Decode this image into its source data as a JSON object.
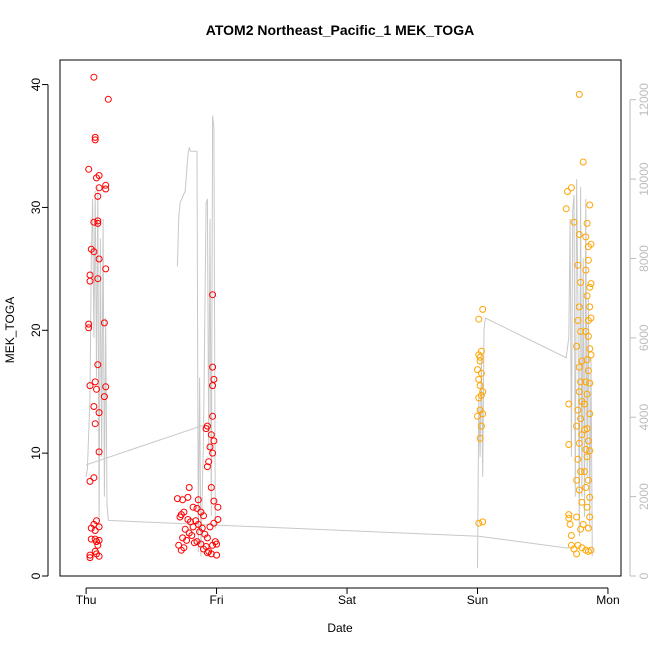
{
  "chart_data": {
    "type": "scatter",
    "title": "ATOM2 Northeast_Pacific_1 MEK_TOGA",
    "xlabel": "Date",
    "ylabel": "MEK_TOGA",
    "x_ticks": [
      "Thu",
      "Fri",
      "Sat",
      "Sun",
      "Mon"
    ],
    "y_ticks": [
      0,
      10,
      20,
      30,
      40
    ],
    "y_right_ticks": [
      0,
      2000,
      4000,
      6000,
      8000,
      10000,
      12000
    ],
    "xlim_days": [
      -0.2,
      4.1
    ],
    "ylim": [
      0,
      42
    ],
    "y_right_lim": [
      0,
      13000
    ],
    "grid": false,
    "colors": {
      "red": "#ff0000",
      "orange": "#ffa500",
      "line": "#c8c8c8"
    },
    "series": [
      {
        "color": "red",
        "points": [
          [
            0.03,
            1.5
          ],
          [
            0.03,
            1.7
          ],
          [
            0.04,
            3.0
          ],
          [
            0.04,
            3.9
          ],
          [
            0.03,
            7.7
          ],
          [
            0.03,
            15.5
          ],
          [
            0.02,
            20.2
          ],
          [
            0.02,
            20.5
          ],
          [
            0.03,
            24.0
          ],
          [
            0.03,
            24.5
          ],
          [
            0.04,
            26.6
          ],
          [
            0.02,
            33.1
          ],
          [
            0.06,
            40.6
          ],
          [
            0.07,
            35.7
          ],
          [
            0.07,
            35.5
          ],
          [
            0.08,
            32.4
          ],
          [
            0.1,
            32.6
          ],
          [
            0.1,
            31.6
          ],
          [
            0.09,
            30.9
          ],
          [
            0.06,
            28.8
          ],
          [
            0.09,
            28.7
          ],
          [
            0.09,
            28.9
          ],
          [
            0.06,
            26.4
          ],
          [
            0.1,
            25.8
          ],
          [
            0.09,
            24.2
          ],
          [
            0.07,
            15.8
          ],
          [
            0.08,
            15.2
          ],
          [
            0.09,
            17.2
          ],
          [
            0.06,
            13.8
          ],
          [
            0.1,
            13.3
          ],
          [
            0.07,
            12.4
          ],
          [
            0.1,
            10.1
          ],
          [
            0.06,
            8.0
          ],
          [
            0.06,
            4.2
          ],
          [
            0.08,
            4.5
          ],
          [
            0.1,
            4.0
          ],
          [
            0.07,
            3.7
          ],
          [
            0.07,
            3.0
          ],
          [
            0.08,
            2.8
          ],
          [
            0.1,
            2.9
          ],
          [
            0.09,
            2.5
          ],
          [
            0.07,
            2.0
          ],
          [
            0.08,
            1.8
          ],
          [
            0.1,
            1.6
          ],
          [
            0.17,
            38.8
          ],
          [
            0.15,
            31.8
          ],
          [
            0.15,
            31.5
          ],
          [
            0.15,
            25.0
          ],
          [
            0.14,
            20.6
          ],
          [
            0.15,
            15.4
          ],
          [
            0.14,
            14.6
          ],
          [
            0.73,
            5.0
          ],
          [
            0.75,
            5.2
          ],
          [
            0.72,
            4.8
          ],
          [
            0.78,
            4.6
          ],
          [
            0.8,
            4.4
          ],
          [
            0.82,
            4.0
          ],
          [
            0.76,
            3.8
          ],
          [
            0.79,
            3.5
          ],
          [
            0.81,
            3.3
          ],
          [
            0.74,
            3.1
          ],
          [
            0.77,
            2.9
          ],
          [
            0.83,
            2.7
          ],
          [
            0.71,
            2.5
          ],
          [
            0.75,
            2.3
          ],
          [
            0.73,
            2.1
          ],
          [
            0.7,
            6.3
          ],
          [
            0.74,
            6.2
          ],
          [
            0.78,
            6.4
          ],
          [
            0.79,
            7.2
          ],
          [
            0.86,
            6.2
          ],
          [
            0.82,
            5.6
          ],
          [
            0.85,
            5.5
          ],
          [
            0.88,
            5.2
          ],
          [
            0.9,
            4.9
          ],
          [
            0.84,
            4.5
          ],
          [
            0.86,
            4.2
          ],
          [
            0.89,
            3.9
          ],
          [
            0.87,
            3.6
          ],
          [
            0.91,
            3.4
          ],
          [
            0.93,
            3.1
          ],
          [
            0.85,
            2.8
          ],
          [
            0.88,
            2.6
          ],
          [
            0.92,
            2.4
          ],
          [
            0.9,
            2.2
          ],
          [
            0.94,
            2.0
          ],
          [
            0.96,
            1.8
          ],
          [
            0.93,
            1.9
          ],
          [
            0.97,
            2.5
          ],
          [
            0.99,
            2.8
          ],
          [
            1.0,
            2.6
          ],
          [
            1.0,
            1.7
          ],
          [
            0.95,
            4.0
          ],
          [
            0.98,
            4.3
          ],
          [
            1.01,
            4.6
          ],
          [
            0.98,
            6.1
          ],
          [
            0.96,
            7.2
          ],
          [
            1.01,
            5.6
          ],
          [
            0.93,
            8.9
          ],
          [
            0.94,
            9.3
          ],
          [
            0.97,
            10.0
          ],
          [
            0.95,
            10.5
          ],
          [
            0.98,
            11.0
          ],
          [
            0.96,
            11.5
          ],
          [
            0.92,
            12.0
          ],
          [
            0.93,
            12.2
          ],
          [
            0.97,
            13.0
          ],
          [
            0.97,
            15.5
          ],
          [
            0.98,
            16.0
          ],
          [
            0.97,
            17.0
          ],
          [
            0.97,
            22.9
          ]
        ]
      },
      {
        "color": "orange",
        "points": [
          [
            3.01,
            4.3
          ],
          [
            3.04,
            4.4
          ],
          [
            3.01,
            20.9
          ],
          [
            3.04,
            21.7
          ],
          [
            3.01,
            18.0
          ],
          [
            3.03,
            18.3
          ],
          [
            3.02,
            17.5
          ],
          [
            3.0,
            16.8
          ],
          [
            3.03,
            16.5
          ],
          [
            3.01,
            16.0
          ],
          [
            3.02,
            15.5
          ],
          [
            3.04,
            15.0
          ],
          [
            3.01,
            14.5
          ],
          [
            3.03,
            14.7
          ],
          [
            3.02,
            13.5
          ],
          [
            3.04,
            13.2
          ],
          [
            3.0,
            13.0
          ],
          [
            3.03,
            12.2
          ],
          [
            3.02,
            11.2
          ],
          [
            3.02,
            17.8
          ],
          [
            3.69,
            31.3
          ],
          [
            3.68,
            29.9
          ],
          [
            3.72,
            31.6
          ],
          [
            3.74,
            28.8
          ],
          [
            3.7,
            14.0
          ],
          [
            3.7,
            10.7
          ],
          [
            3.7,
            5.0
          ],
          [
            3.7,
            4.7
          ],
          [
            3.71,
            4.2
          ],
          [
            3.72,
            3.3
          ],
          [
            3.72,
            2.5
          ],
          [
            3.74,
            2.2
          ],
          [
            3.76,
            1.8
          ],
          [
            3.77,
            2.5
          ],
          [
            3.78,
            39.2
          ],
          [
            3.78,
            27.8
          ],
          [
            3.77,
            25.3
          ],
          [
            3.79,
            23.9
          ],
          [
            3.78,
            21.9
          ],
          [
            3.77,
            20.8
          ],
          [
            3.79,
            19.9
          ],
          [
            3.76,
            18.7
          ],
          [
            3.8,
            17.5
          ],
          [
            3.78,
            17.0
          ],
          [
            3.79,
            15.8
          ],
          [
            3.78,
            15.0
          ],
          [
            3.8,
            14.2
          ],
          [
            3.77,
            13.5
          ],
          [
            3.79,
            12.8
          ],
          [
            3.76,
            12.2
          ],
          [
            3.8,
            11.5
          ],
          [
            3.78,
            10.8
          ],
          [
            3.77,
            9.5
          ],
          [
            3.79,
            8.5
          ],
          [
            3.76,
            7.8
          ],
          [
            3.78,
            7.0
          ],
          [
            3.8,
            6.0
          ],
          [
            3.76,
            4.8
          ],
          [
            3.79,
            3.8
          ],
          [
            3.81,
            33.7
          ],
          [
            3.84,
            28.7
          ],
          [
            3.86,
            30.2
          ],
          [
            3.83,
            27.6
          ],
          [
            3.85,
            26.8
          ],
          [
            3.87,
            27.0
          ],
          [
            3.85,
            25.7
          ],
          [
            3.83,
            24.9
          ],
          [
            3.86,
            23.5
          ],
          [
            3.87,
            23.8
          ],
          [
            3.84,
            22.8
          ],
          [
            3.86,
            21.9
          ],
          [
            3.85,
            20.8
          ],
          [
            3.87,
            21.0
          ],
          [
            3.83,
            19.9
          ],
          [
            3.85,
            19.5
          ],
          [
            3.86,
            18.5
          ],
          [
            3.84,
            17.6
          ],
          [
            3.87,
            18.0
          ],
          [
            3.85,
            16.7
          ],
          [
            3.83,
            15.8
          ],
          [
            3.86,
            15.7
          ],
          [
            3.84,
            14.8
          ],
          [
            3.82,
            14.0
          ],
          [
            3.86,
            13.2
          ],
          [
            3.84,
            12.0
          ],
          [
            3.82,
            11.9
          ],
          [
            3.85,
            11.0
          ],
          [
            3.83,
            10.3
          ],
          [
            3.86,
            10.2
          ],
          [
            3.84,
            9.7
          ],
          [
            3.82,
            8.5
          ],
          [
            3.85,
            7.8
          ],
          [
            3.83,
            7.2
          ],
          [
            3.86,
            6.4
          ],
          [
            3.84,
            5.6
          ],
          [
            3.86,
            4.8
          ],
          [
            3.85,
            3.9
          ],
          [
            3.83,
            2.1
          ],
          [
            3.85,
            2.0
          ],
          [
            3.87,
            2.1
          ],
          [
            3.8,
            2.3
          ],
          [
            3.81,
            4.2
          ]
        ]
      }
    ],
    "line_series": {
      "axis": "right",
      "segments": [
        [
          [
            0.0,
            2500
          ],
          [
            0.01,
            2700
          ],
          [
            0.03,
            4500
          ],
          [
            0.04,
            8000
          ],
          [
            0.05,
            9500
          ],
          [
            0.06,
            6000
          ],
          [
            0.07,
            9700
          ],
          [
            0.08,
            5000
          ],
          [
            0.09,
            9800
          ],
          [
            0.1,
            1200
          ],
          [
            0.11,
            8500
          ],
          [
            0.12,
            3000
          ],
          [
            0.13,
            9000
          ],
          [
            0.14,
            2000
          ],
          [
            0.15,
            6500
          ],
          [
            0.16,
            1800
          ],
          [
            0.17,
            1400
          ]
        ],
        [
          [
            0.0,
            2800
          ],
          [
            0.9,
            3800
          ]
        ],
        [
          [
            0.17,
            1400
          ],
          [
            3.01,
            1000
          ],
          [
            3.7,
            700
          ]
        ],
        [
          [
            0.7,
            7800
          ],
          [
            0.71,
            9000
          ],
          [
            0.72,
            9400
          ],
          [
            0.76,
            9700
          ],
          [
            0.78,
            10600
          ],
          [
            0.79,
            10800
          ],
          [
            0.8,
            10700
          ],
          [
            0.85,
            10700
          ],
          [
            0.86,
            600
          ],
          [
            0.87,
            5000
          ],
          [
            0.88,
            500
          ],
          [
            0.89,
            2000
          ],
          [
            0.9,
            3500
          ],
          [
            0.92,
            9400
          ],
          [
            0.93,
            9500
          ],
          [
            0.94,
            3200
          ],
          [
            0.95,
            9000
          ],
          [
            0.96,
            1500
          ],
          [
            0.97,
            11600
          ],
          [
            0.98,
            11300
          ],
          [
            0.99,
            1200
          ]
        ],
        [
          [
            3.0,
            200
          ],
          [
            3.01,
            4500
          ],
          [
            3.02,
            3000
          ],
          [
            3.03,
            5500
          ],
          [
            3.04,
            2500
          ],
          [
            3.05,
            6200
          ],
          [
            3.06,
            6500
          ]
        ],
        [
          [
            3.06,
            6500
          ],
          [
            3.68,
            5500
          ],
          [
            3.7,
            6000
          ],
          [
            3.71,
            9000
          ],
          [
            3.72,
            3000
          ],
          [
            3.73,
            9200
          ],
          [
            3.74,
            9600
          ],
          [
            3.75,
            2000
          ],
          [
            3.76,
            10000
          ],
          [
            3.77,
            7000
          ],
          [
            3.78,
            1000
          ],
          [
            3.79,
            9800
          ],
          [
            3.8,
            2000
          ],
          [
            3.81,
            8000
          ],
          [
            3.82,
            1500
          ],
          [
            3.83,
            9500
          ],
          [
            3.84,
            2500
          ],
          [
            3.85,
            7000
          ],
          [
            3.86,
            1200
          ],
          [
            3.87,
            5500
          ],
          [
            3.88,
            500
          ]
        ]
      ]
    }
  }
}
